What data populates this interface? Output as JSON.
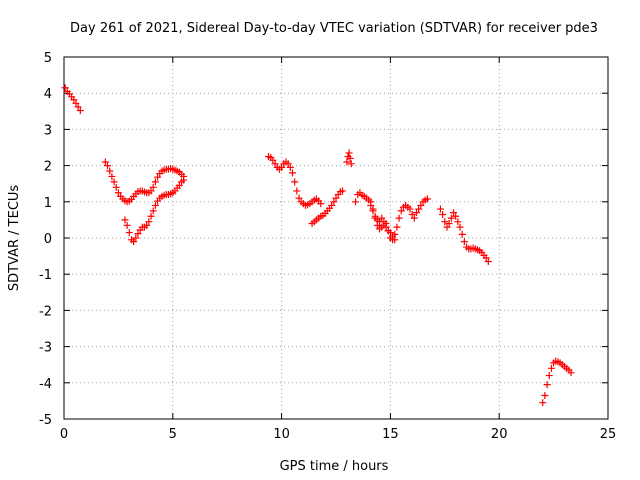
{
  "chart_data": {
    "type": "scatter",
    "title": "Day 261 of 2021, Sidereal Day-to-day VTEC variation (SDTVAR) for receiver pde3",
    "xlabel": "GPS time / hours",
    "ylabel": "SDTVAR / TECUs",
    "xlim": [
      0,
      25
    ],
    "ylim": [
      -5,
      5
    ],
    "xticks": [
      0,
      5,
      10,
      15,
      20,
      25
    ],
    "yticks": [
      -5,
      -4,
      -3,
      -2,
      -1,
      0,
      1,
      2,
      3,
      4,
      5
    ],
    "xtick_labels": [
      "0",
      "5",
      "10",
      "15",
      "20",
      "25"
    ],
    "ytick_labels": [
      "-5",
      "-4",
      "-3",
      "-2",
      "-1",
      "0",
      "1",
      "2",
      "3",
      "4",
      "5"
    ],
    "grid": true,
    "marker": "plus",
    "color": "#ff0000",
    "series": [
      {
        "name": "pde3",
        "x": [
          0.05,
          0.15,
          0.25,
          0.35,
          0.45,
          0.55,
          0.65,
          0.75,
          1.9,
          2.0,
          2.1,
          2.2,
          2.3,
          2.4,
          2.5,
          2.6,
          2.7,
          2.8,
          2.9,
          3.0,
          3.1,
          3.2,
          3.3,
          3.4,
          3.5,
          3.6,
          3.7,
          3.8,
          3.9,
          4.0,
          4.1,
          4.2,
          4.3,
          4.4,
          4.5,
          4.6,
          4.7,
          4.8,
          4.9,
          5.0,
          5.1,
          5.2,
          5.3,
          5.4,
          5.5,
          2.8,
          2.9,
          3.0,
          3.1,
          3.2,
          3.3,
          3.4,
          3.5,
          3.6,
          3.7,
          3.8,
          3.9,
          4.0,
          4.1,
          4.2,
          4.3,
          4.4,
          4.5,
          4.6,
          4.7,
          4.8,
          4.9,
          5.0,
          5.1,
          5.2,
          5.3,
          5.4,
          5.5,
          9.4,
          9.5,
          9.6,
          9.7,
          9.8,
          9.9,
          10.0,
          10.1,
          10.2,
          10.3,
          10.4,
          10.5,
          10.6,
          10.7,
          10.8,
          10.9,
          11.0,
          11.1,
          11.2,
          11.3,
          11.4,
          11.5,
          11.6,
          11.7,
          11.8,
          11.4,
          11.5,
          11.6,
          11.7,
          11.8,
          11.9,
          12.0,
          12.1,
          12.2,
          12.3,
          12.4,
          12.5,
          12.6,
          12.7,
          12.8,
          13.0,
          13.05,
          13.1,
          13.15,
          13.2,
          13.4,
          13.5,
          13.6,
          13.7,
          13.8,
          13.9,
          14.0,
          14.1,
          14.2,
          14.3,
          14.4,
          14.5,
          14.6,
          14.7,
          14.8,
          14.9,
          15.0,
          15.1,
          15.2,
          15.3,
          15.4,
          15.5,
          15.6,
          15.7,
          15.8,
          15.9,
          16.0,
          16.1,
          16.2,
          16.3,
          16.4,
          16.5,
          16.6,
          16.7,
          14.1,
          14.2,
          14.3,
          14.4,
          14.5,
          14.6,
          14.7,
          14.8,
          14.9,
          15.0,
          15.1,
          15.2,
          17.3,
          17.4,
          17.5,
          17.6,
          17.7,
          17.8,
          17.9,
          18.0,
          18.1,
          18.2,
          18.3,
          18.4,
          18.5,
          18.6,
          18.7,
          18.8,
          18.9,
          19.0,
          19.1,
          19.2,
          19.3,
          19.4,
          19.5,
          22.0,
          22.1,
          22.2,
          22.3,
          22.4,
          22.5,
          22.6,
          22.7,
          22.8,
          22.9,
          23.0,
          23.1,
          23.2,
          23.3
        ],
        "y": [
          4.15,
          4.05,
          3.98,
          3.9,
          3.82,
          3.72,
          3.62,
          3.52,
          2.1,
          2.0,
          1.85,
          1.7,
          1.55,
          1.4,
          1.25,
          1.15,
          1.08,
          1.03,
          1.0,
          1.02,
          1.07,
          1.15,
          1.22,
          1.28,
          1.3,
          1.3,
          1.27,
          1.25,
          1.25,
          1.3,
          1.4,
          1.55,
          1.68,
          1.78,
          1.85,
          1.88,
          1.9,
          1.9,
          1.92,
          1.9,
          1.88,
          1.85,
          1.82,
          1.76,
          1.7,
          0.5,
          0.35,
          0.15,
          -0.05,
          -0.1,
          0.0,
          0.12,
          0.22,
          0.3,
          0.3,
          0.35,
          0.45,
          0.6,
          0.75,
          0.9,
          1.02,
          1.1,
          1.15,
          1.18,
          1.2,
          1.2,
          1.22,
          1.25,
          1.3,
          1.38,
          1.45,
          1.55,
          1.6,
          2.25,
          2.22,
          2.15,
          2.05,
          1.95,
          1.9,
          1.95,
          2.05,
          2.1,
          2.05,
          1.95,
          1.8,
          1.55,
          1.3,
          1.1,
          1.0,
          0.95,
          0.9,
          0.92,
          0.95,
          1.0,
          1.05,
          1.08,
          1.02,
          0.95,
          0.4,
          0.45,
          0.5,
          0.55,
          0.6,
          0.62,
          0.68,
          0.75,
          0.82,
          0.9,
          1.0,
          1.1,
          1.2,
          1.28,
          1.3,
          2.1,
          2.25,
          2.35,
          2.2,
          2.05,
          1.0,
          1.2,
          1.25,
          1.18,
          1.15,
          1.1,
          1.05,
          1.0,
          0.8,
          0.6,
          0.5,
          0.45,
          0.55,
          0.45,
          0.4,
          0.2,
          0.0,
          -0.05,
          0.1,
          0.3,
          0.55,
          0.75,
          0.85,
          0.9,
          0.85,
          0.8,
          0.65,
          0.55,
          0.7,
          0.8,
          0.9,
          1.0,
          1.05,
          1.08,
          0.9,
          0.75,
          0.55,
          0.35,
          0.25,
          0.3,
          0.35,
          0.3,
          0.2,
          0.15,
          0.05,
          -0.05,
          0.8,
          0.65,
          0.45,
          0.3,
          0.4,
          0.55,
          0.7,
          0.6,
          0.45,
          0.3,
          0.1,
          -0.1,
          -0.25,
          -0.3,
          -0.3,
          -0.28,
          -0.3,
          -0.32,
          -0.35,
          -0.4,
          -0.48,
          -0.55,
          -0.65,
          -4.55,
          -4.35,
          -4.05,
          -3.8,
          -3.6,
          -3.45,
          -3.4,
          -3.42,
          -3.45,
          -3.5,
          -3.55,
          -3.6,
          -3.65,
          -3.72
        ]
      }
    ]
  }
}
